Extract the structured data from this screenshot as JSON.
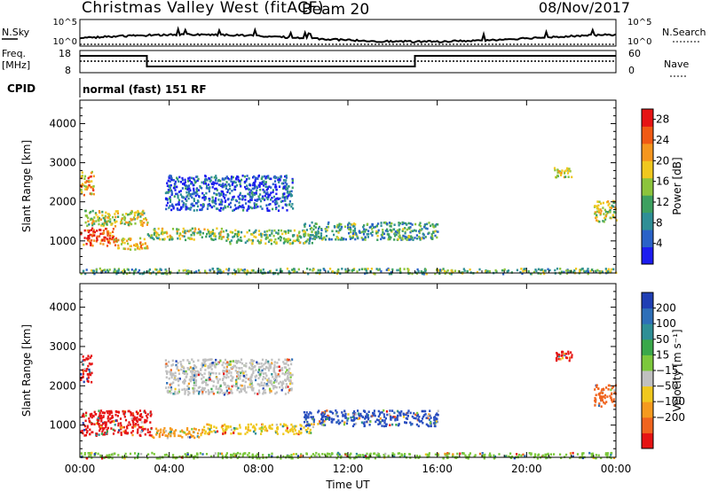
{
  "header": {
    "title": "Christmas Valley West (fitACF)",
    "beam": "Beam 20",
    "date": "08/Nov/2017"
  },
  "top_panels": {
    "nsky_label": "N.Sky",
    "nsearch_label": "N.Search",
    "nsky_ticks": [
      "10^5",
      "10^0"
    ],
    "nsearch_ticks": [
      "10^5",
      "10^0"
    ],
    "freq_label_1": "Freq.",
    "freq_label_2": "[MHz]",
    "freq_ticks": [
      "18",
      "8"
    ],
    "nave_label": "Nave",
    "nave_ticks": [
      "60",
      "0"
    ],
    "cpid_label": "CPID",
    "cpid_value": "normal (fast) 151 RF"
  },
  "chart_data": [
    {
      "type": "heatmap",
      "name": "power",
      "ylabel": "Slant Range [km]",
      "xlabel": "Time UT",
      "x_ticks": [
        "00:00",
        "04:00",
        "08:00",
        "12:00",
        "16:00",
        "20:00",
        "00:00"
      ],
      "x_range_hours": [
        0,
        24
      ],
      "y_ticks": [
        1000,
        2000,
        3000,
        4000
      ],
      "ylim": [
        180,
        4600
      ],
      "colorbar": {
        "label": "Power [dB]",
        "ticks": [
          4,
          8,
          12,
          16,
          20,
          24,
          28
        ],
        "range": [
          0,
          30
        ],
        "colors": [
          "#1c1cf0",
          "#2a62c8",
          "#2f8f96",
          "#3da060",
          "#8cc43c",
          "#f0c81e",
          "#f5961e",
          "#f05a14",
          "#e61414"
        ]
      },
      "bands": [
        {
          "t0": 0.0,
          "t1": 1.5,
          "r0": 900,
          "r1": 1350,
          "level": 0.85
        },
        {
          "t0": 1.5,
          "t1": 3.0,
          "r0": 780,
          "r1": 1100,
          "level": 0.65
        },
        {
          "t0": 0.2,
          "t1": 3.0,
          "r0": 1400,
          "r1": 1800,
          "level": 0.55
        },
        {
          "t0": 0.0,
          "t1": 0.6,
          "r0": 2200,
          "r1": 2800,
          "level": 0.7
        },
        {
          "t0": 3.0,
          "t1": 6.5,
          "r0": 1050,
          "r1": 1350,
          "level": 0.5
        },
        {
          "t0": 6.5,
          "t1": 10.5,
          "r0": 950,
          "r1": 1300,
          "level": 0.45
        },
        {
          "t0": 10.0,
          "t1": 16.0,
          "r0": 1050,
          "r1": 1500,
          "level": 0.35
        },
        {
          "t0": 3.8,
          "t1": 9.5,
          "r0": 1800,
          "r1": 2700,
          "level": 0.15
        },
        {
          "t0": 21.2,
          "t1": 22.0,
          "r0": 2650,
          "r1": 2900,
          "level": 0.55
        },
        {
          "t0": 23.0,
          "t1": 24.0,
          "r0": 1500,
          "r1": 2050,
          "level": 0.55
        },
        {
          "t0": 0.0,
          "t1": 24.0,
          "r0": 180,
          "r1": 320,
          "level": 0.4
        }
      ]
    },
    {
      "type": "heatmap",
      "name": "velocity",
      "ylabel": "Slant Range [km]",
      "xlabel": "Time UT",
      "x_ticks": [
        "00:00",
        "04:00",
        "08:00",
        "12:00",
        "16:00",
        "20:00",
        "00:00"
      ],
      "x_range_hours": [
        0,
        24
      ],
      "y_ticks": [
        1000,
        2000,
        3000,
        4000
      ],
      "ylim": [
        180,
        4600
      ],
      "colorbar": {
        "label": "Velocity [m s⁻¹]",
        "ticks": [
          "200",
          "100",
          "50",
          "15",
          "−15",
          "−50",
          "−100",
          "−200"
        ],
        "colors": [
          "#1f3fb4",
          "#2e6fb8",
          "#2f8f96",
          "#3aa84a",
          "#7cc83c",
          "#c0c0c0",
          "#f0c81e",
          "#f59a1e",
          "#f0641e",
          "#e61414"
        ]
      },
      "bands": [
        {
          "t0": 0.0,
          "t1": 3.2,
          "r0": 750,
          "r1": 1400,
          "color": "#e61414"
        },
        {
          "t0": 3.2,
          "t1": 5.5,
          "r0": 700,
          "r1": 950,
          "color": "#f59a1e"
        },
        {
          "t0": 5.5,
          "t1": 10.5,
          "r0": 800,
          "r1": 1050,
          "color": "#f0c81e"
        },
        {
          "t0": 10.0,
          "t1": 16.0,
          "r0": 1000,
          "r1": 1400,
          "color": "#2a4fc0"
        },
        {
          "t0": 0.0,
          "t1": 0.5,
          "r0": 2100,
          "r1": 2800,
          "color": "#e61414"
        },
        {
          "t0": 3.8,
          "t1": 9.5,
          "r0": 1800,
          "r1": 2700,
          "color": "#c0c0c0"
        },
        {
          "t0": 21.2,
          "t1": 22.0,
          "r0": 2650,
          "r1": 2900,
          "color": "#e61414"
        },
        {
          "t0": 23.0,
          "t1": 24.0,
          "r0": 1500,
          "r1": 2050,
          "color": "#f0641e"
        },
        {
          "t0": 0.0,
          "t1": 24.0,
          "r0": 180,
          "r1": 320,
          "color": "#7cc83c"
        }
      ]
    }
  ]
}
